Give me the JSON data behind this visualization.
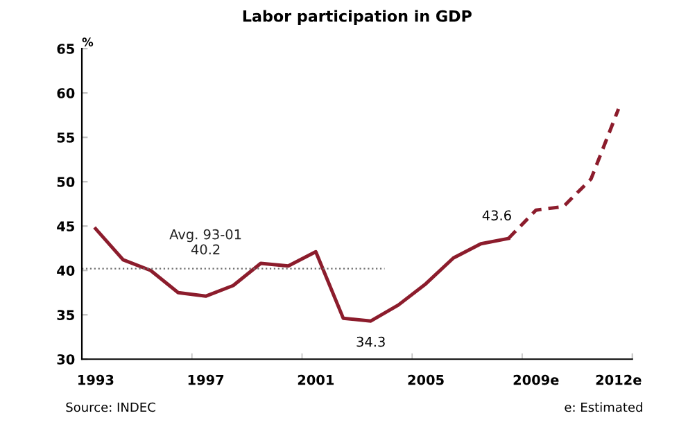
{
  "chart_data": {
    "type": "line",
    "title": "Labor participation in GDP",
    "ylabel": "%",
    "categories": [
      "1993",
      null,
      null,
      null,
      "1997",
      null,
      null,
      null,
      "2001",
      null,
      null,
      null,
      "2005",
      null,
      null,
      null,
      "2009e",
      null,
      null,
      "2012e"
    ],
    "series": [
      {
        "color": "#8c1c2c",
        "line_style": "solid",
        "values": [
          44.7,
          41.2,
          40.0,
          37.5,
          37.1,
          38.3,
          40.8,
          40.5,
          42.1,
          34.6,
          34.3,
          36.1,
          38.5,
          41.4,
          43.0,
          43.6,
          null,
          null,
          null,
          null
        ]
      },
      {
        "color": "#8c1c2c",
        "line_style": "dashed",
        "values": [
          null,
          null,
          null,
          null,
          null,
          null,
          null,
          null,
          null,
          null,
          null,
          null,
          null,
          null,
          null,
          43.6,
          46.8,
          47.2,
          50.3,
          58.2
        ]
      }
    ],
    "ylim": [
      30,
      65
    ],
    "yticks": [
      30,
      35,
      40,
      45,
      50,
      55,
      60,
      65
    ],
    "grid": false,
    "legend": false,
    "marker": "none",
    "ref_lines": [
      {
        "axis": "y",
        "value": 40.2,
        "label": "Avg. 93-01\n40.2",
        "color": "#707070",
        "line_style": "dotted"
      }
    ],
    "annotations": [
      {
        "text": "34.3",
        "y": 34.3
      },
      {
        "text": "43.6",
        "y": 43.6
      },
      "Source: INDEC",
      "e: Estimated"
    ]
  }
}
